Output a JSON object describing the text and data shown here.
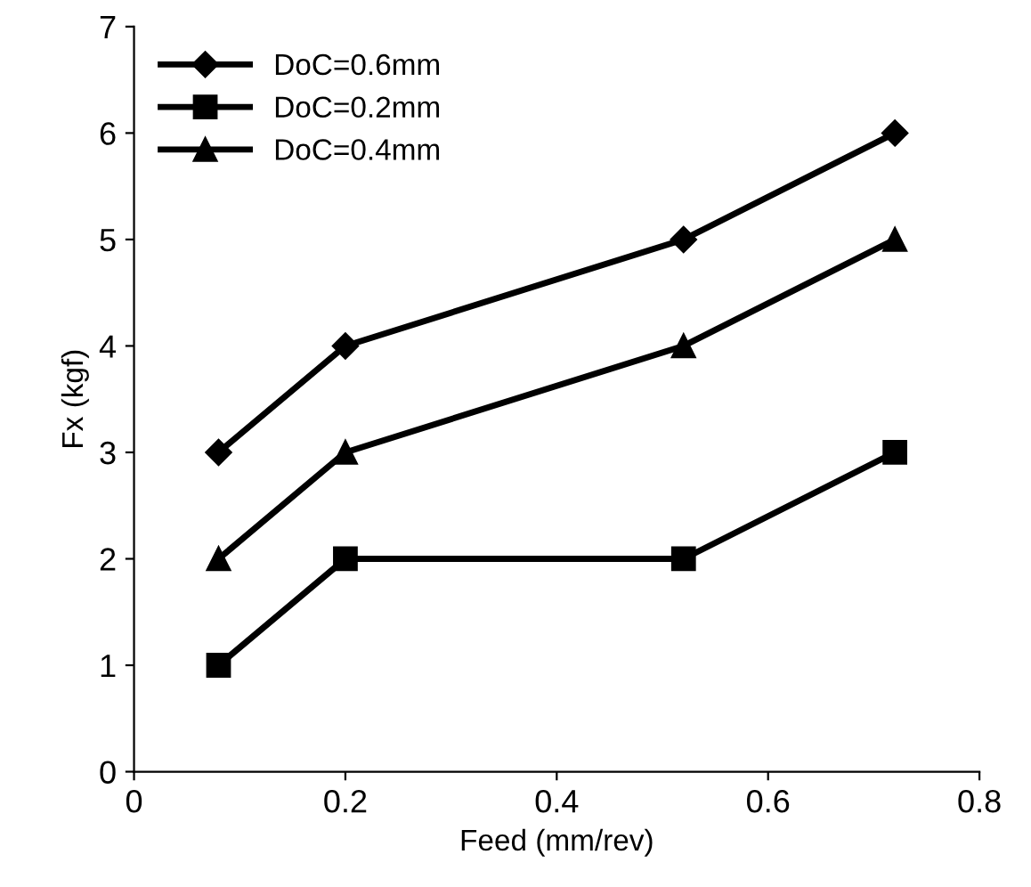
{
  "chart_data": {
    "type": "line",
    "xlabel": "Feed (mm/rev)",
    "ylabel": "Fx (kgf)",
    "x": [
      0.08,
      0.2,
      0.52,
      0.72
    ],
    "series": [
      {
        "name": "DoC=0.6mm",
        "color": "#000000",
        "marker": "diamond",
        "values": [
          3,
          4,
          5,
          6
        ]
      },
      {
        "name": "DoC=0.2mm",
        "color": "#000000",
        "marker": "square",
        "values": [
          1,
          2,
          2,
          3
        ]
      },
      {
        "name": "DoC=0.4mm",
        "color": "#000000",
        "marker": "triangle",
        "values": [
          2,
          3,
          4,
          5
        ]
      }
    ],
    "xlim": [
      0,
      0.8
    ],
    "xticks": [
      0,
      0.2,
      0.4,
      0.6,
      0.8
    ],
    "ylim": [
      0,
      7
    ],
    "yticks": [
      0,
      1,
      2,
      3,
      4,
      5,
      6,
      7
    ],
    "grid": false,
    "legend": "top left",
    "line_style": "solid"
  }
}
